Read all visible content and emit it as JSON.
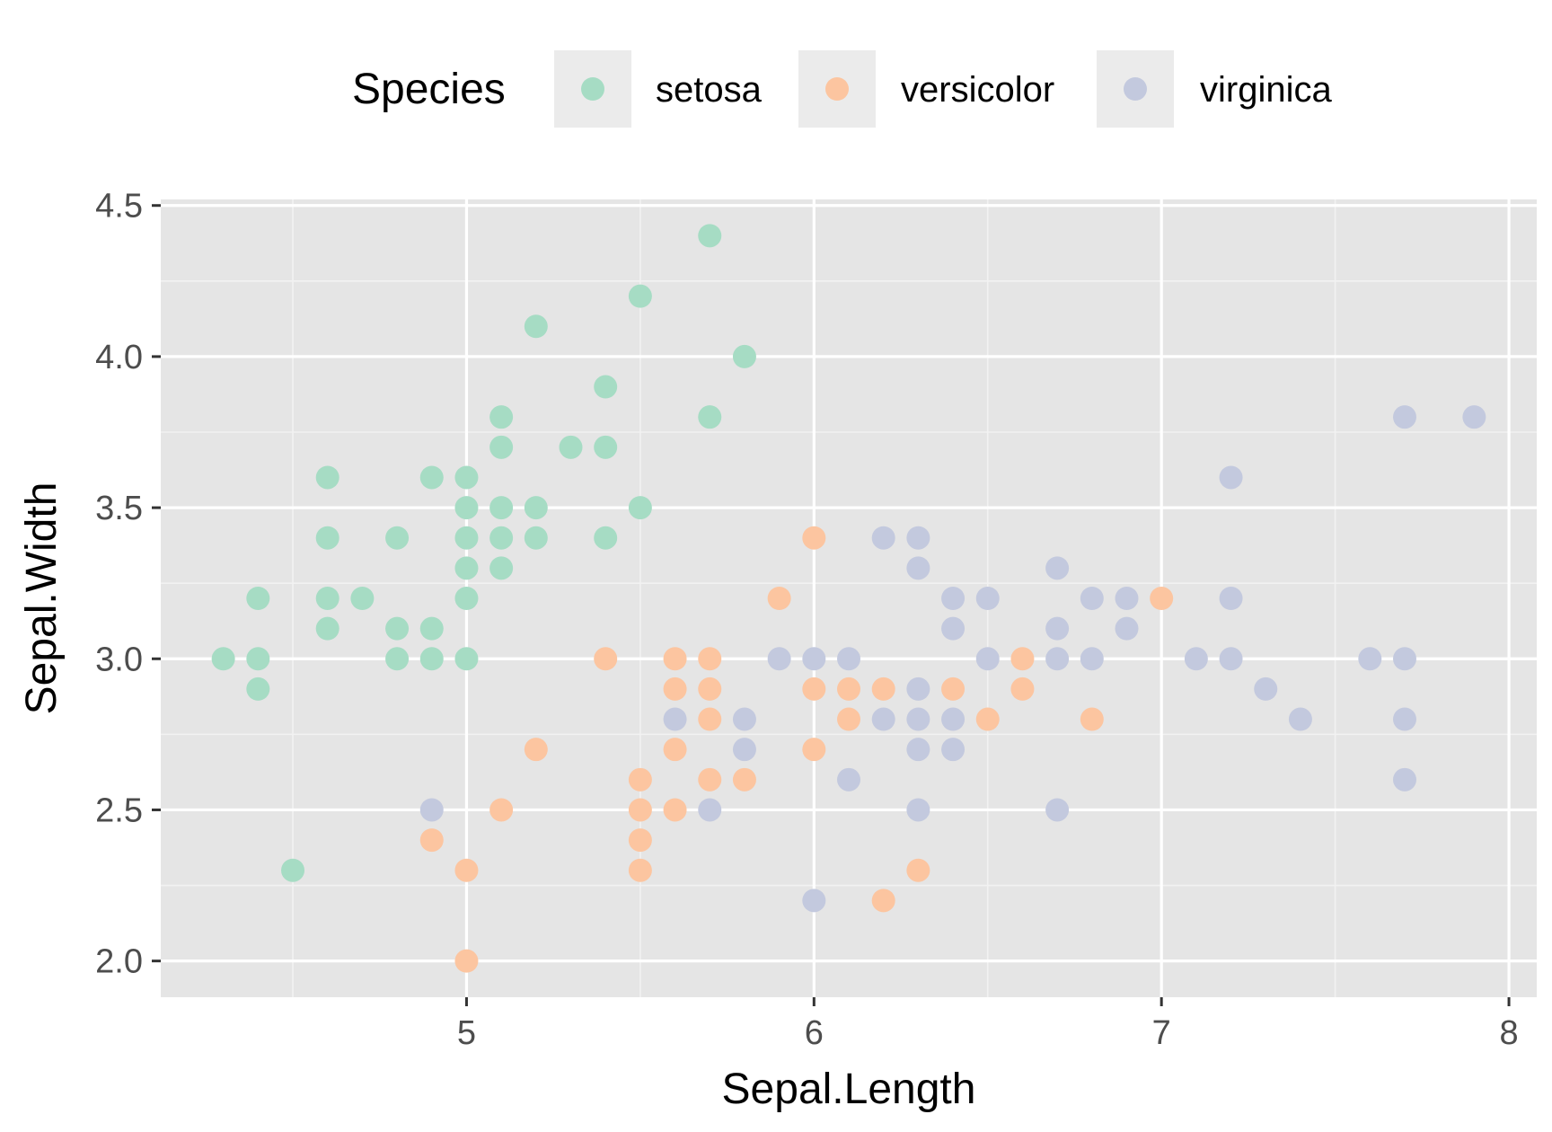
{
  "chart_data": {
    "type": "scatter",
    "xlabel": "Sepal.Length",
    "ylabel": "Sepal.Width",
    "xlim": [
      4.12,
      8.08
    ],
    "ylim": [
      1.88,
      4.52
    ],
    "x_ticks": [
      5,
      6,
      7,
      8
    ],
    "y_ticks": [
      2.0,
      2.5,
      3.0,
      3.5,
      4.0,
      4.5
    ],
    "x_tick_labels": [
      "5",
      "6",
      "7",
      "8"
    ],
    "y_tick_labels": [
      "2.0",
      "2.5",
      "3.0",
      "3.5",
      "4.0",
      "4.5"
    ],
    "grid": true,
    "panel_background": "#e5e5e5",
    "legend": {
      "title": "Species",
      "position": "top"
    },
    "series": [
      {
        "name": "setosa",
        "color": "#a6dcc4",
        "points": [
          [
            4.3,
            3.0
          ],
          [
            4.4,
            3.2
          ],
          [
            4.4,
            3.0
          ],
          [
            4.4,
            2.9
          ],
          [
            4.5,
            2.3
          ],
          [
            4.6,
            3.6
          ],
          [
            4.6,
            3.4
          ],
          [
            4.6,
            3.2
          ],
          [
            4.6,
            3.1
          ],
          [
            4.7,
            3.2
          ],
          [
            4.8,
            3.4
          ],
          [
            4.8,
            3.1
          ],
          [
            4.8,
            3.0
          ],
          [
            4.9,
            3.6
          ],
          [
            4.9,
            3.1
          ],
          [
            4.9,
            3.0
          ],
          [
            5.0,
            3.6
          ],
          [
            5.0,
            3.5
          ],
          [
            5.0,
            3.4
          ],
          [
            5.0,
            3.3
          ],
          [
            5.0,
            3.2
          ],
          [
            5.0,
            3.0
          ],
          [
            5.1,
            3.8
          ],
          [
            5.1,
            3.7
          ],
          [
            5.1,
            3.5
          ],
          [
            5.1,
            3.4
          ],
          [
            5.1,
            3.3
          ],
          [
            5.2,
            4.1
          ],
          [
            5.2,
            3.5
          ],
          [
            5.2,
            3.4
          ],
          [
            5.3,
            3.7
          ],
          [
            5.4,
            3.9
          ],
          [
            5.4,
            3.7
          ],
          [
            5.4,
            3.4
          ],
          [
            5.5,
            4.2
          ],
          [
            5.5,
            3.5
          ],
          [
            5.7,
            4.4
          ],
          [
            5.7,
            3.8
          ],
          [
            5.8,
            4.0
          ]
        ]
      },
      {
        "name": "versicolor",
        "color": "#fcc5a0",
        "points": [
          [
            4.9,
            2.4
          ],
          [
            5.0,
            2.3
          ],
          [
            5.0,
            2.0
          ],
          [
            5.1,
            2.5
          ],
          [
            5.2,
            2.7
          ],
          [
            5.4,
            3.0
          ],
          [
            5.5,
            2.6
          ],
          [
            5.5,
            2.5
          ],
          [
            5.5,
            2.4
          ],
          [
            5.5,
            2.3
          ],
          [
            5.6,
            3.0
          ],
          [
            5.6,
            2.9
          ],
          [
            5.6,
            2.7
          ],
          [
            5.6,
            2.5
          ],
          [
            5.7,
            3.0
          ],
          [
            5.7,
            2.9
          ],
          [
            5.7,
            2.8
          ],
          [
            5.7,
            2.6
          ],
          [
            5.8,
            2.6
          ],
          [
            5.9,
            3.2
          ],
          [
            6.0,
            3.4
          ],
          [
            6.0,
            2.9
          ],
          [
            6.0,
            2.7
          ],
          [
            6.1,
            2.9
          ],
          [
            6.1,
            2.8
          ],
          [
            6.2,
            2.9
          ],
          [
            6.2,
            2.2
          ],
          [
            6.3,
            2.3
          ],
          [
            6.4,
            2.9
          ],
          [
            6.5,
            2.8
          ],
          [
            6.6,
            3.0
          ],
          [
            6.6,
            2.9
          ],
          [
            6.8,
            2.8
          ],
          [
            7.0,
            3.2
          ]
        ]
      },
      {
        "name": "virginica",
        "color": "#c3c9de",
        "points": [
          [
            4.9,
            2.5
          ],
          [
            5.6,
            2.8
          ],
          [
            5.7,
            2.5
          ],
          [
            5.8,
            2.8
          ],
          [
            5.8,
            2.7
          ],
          [
            5.9,
            3.0
          ],
          [
            6.0,
            3.0
          ],
          [
            6.0,
            2.2
          ],
          [
            6.1,
            3.0
          ],
          [
            6.1,
            2.6
          ],
          [
            6.2,
            3.4
          ],
          [
            6.2,
            2.8
          ],
          [
            6.3,
            3.4
          ],
          [
            6.3,
            3.3
          ],
          [
            6.3,
            2.9
          ],
          [
            6.3,
            2.8
          ],
          [
            6.3,
            2.7
          ],
          [
            6.3,
            2.5
          ],
          [
            6.4,
            3.2
          ],
          [
            6.4,
            3.1
          ],
          [
            6.4,
            2.8
          ],
          [
            6.4,
            2.7
          ],
          [
            6.5,
            3.2
          ],
          [
            6.5,
            3.0
          ],
          [
            6.7,
            3.3
          ],
          [
            6.7,
            3.1
          ],
          [
            6.7,
            3.0
          ],
          [
            6.7,
            2.5
          ],
          [
            6.8,
            3.2
          ],
          [
            6.8,
            3.0
          ],
          [
            6.9,
            3.2
          ],
          [
            6.9,
            3.1
          ],
          [
            7.1,
            3.0
          ],
          [
            7.2,
            3.6
          ],
          [
            7.2,
            3.2
          ],
          [
            7.2,
            3.0
          ],
          [
            7.3,
            2.9
          ],
          [
            7.4,
            2.8
          ],
          [
            7.6,
            3.0
          ],
          [
            7.7,
            3.8
          ],
          [
            7.7,
            3.0
          ],
          [
            7.7,
            2.8
          ],
          [
            7.7,
            2.6
          ],
          [
            7.9,
            3.8
          ]
        ]
      }
    ]
  }
}
